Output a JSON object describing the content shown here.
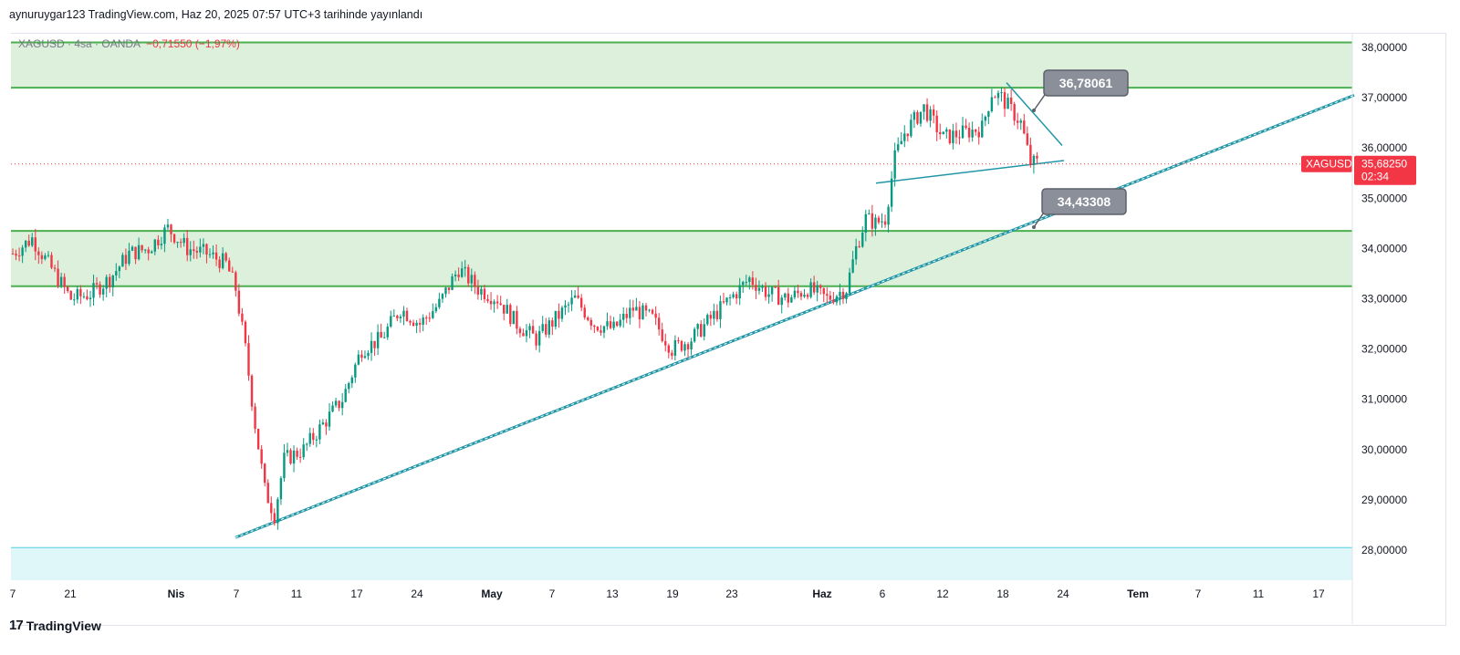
{
  "header": {
    "publish_line": "aynuruygar123 TradingView.com, Haz 20, 2025 07:57 UTC+3 tarihinde yayınlandı"
  },
  "legend": {
    "symbol": "XAGUSD",
    "interval": "4sa",
    "exchange": "OANDA",
    "change": "−0,71550",
    "change_pct": "(−1,97%)",
    "sep": " · "
  },
  "price_tag": {
    "symbol": "XAGUSD",
    "price": "35,68250",
    "countdown": "02:34"
  },
  "annotations": {
    "upper_label": "36,78061",
    "lower_label": "34,43308"
  },
  "brand": {
    "logo": "17",
    "name": "TradingView"
  },
  "colors": {
    "up": "#089981",
    "down": "#f23645",
    "zone_fill": "#dcf0dc",
    "zone_line": "#4caf50",
    "trend": "#2196a6",
    "bottom_zone": "#e0f7fa",
    "label_bg": "#8b8f99"
  },
  "chart_data": {
    "type": "candlestick",
    "title": "",
    "y_axis": {
      "side": "right",
      "ticks": [
        "38,00000",
        "37,00000",
        "36,00000",
        "35,00000",
        "34,00000",
        "33,00000",
        "32,00000",
        "31,00000",
        "30,00000",
        "29,00000",
        "28,00000"
      ],
      "range": [
        27.5,
        38.2
      ]
    },
    "x_axis": {
      "ticks": [
        "7",
        "21",
        "Nis",
        "7",
        "11",
        "17",
        "24",
        "May",
        "7",
        "13",
        "19",
        "23",
        "Haz",
        "6",
        "12",
        "18",
        "24",
        "Tem",
        "7",
        "11",
        "17"
      ]
    },
    "zones": [
      {
        "from": 37.2,
        "to": 38.1
      },
      {
        "from": 33.25,
        "to": 34.35
      }
    ],
    "bottom_zone": {
      "from": 27.5,
      "to": 28.05
    },
    "current_price": 35.6825,
    "price_path": [
      [
        0,
        33.9
      ],
      [
        2,
        34.2
      ],
      [
        4,
        33.6
      ],
      [
        6,
        33.0
      ],
      [
        8,
        33.1
      ],
      [
        10,
        33.4
      ],
      [
        12,
        33.9
      ],
      [
        14,
        34.0
      ],
      [
        16,
        34.4
      ],
      [
        18,
        34.0
      ],
      [
        20,
        33.9
      ],
      [
        22,
        33.7
      ],
      [
        23,
        33.2
      ],
      [
        24,
        32.0
      ],
      [
        25,
        30.5
      ],
      [
        26,
        29.2
      ],
      [
        27,
        28.7
      ],
      [
        28,
        29.8
      ],
      [
        30,
        30.0
      ],
      [
        32,
        30.5
      ],
      [
        34,
        31.0
      ],
      [
        36,
        32.0
      ],
      [
        38,
        32.2
      ],
      [
        40,
        32.8
      ],
      [
        42,
        32.5
      ],
      [
        44,
        32.9
      ],
      [
        46,
        33.6
      ],
      [
        48,
        33.2
      ],
      [
        50,
        33.0
      ],
      [
        52,
        32.5
      ],
      [
        54,
        32.2
      ],
      [
        56,
        32.6
      ],
      [
        58,
        33.0
      ],
      [
        60,
        32.5
      ],
      [
        62,
        32.4
      ],
      [
        64,
        32.8
      ],
      [
        66,
        32.6
      ],
      [
        68,
        32.0
      ],
      [
        70,
        32.2
      ],
      [
        72,
        32.6
      ],
      [
        74,
        33.0
      ],
      [
        76,
        33.4
      ],
      [
        78,
        33.1
      ],
      [
        80,
        33.0
      ],
      [
        82,
        33.2
      ],
      [
        84,
        33.0
      ],
      [
        86,
        33.2
      ],
      [
        87,
        34.0
      ],
      [
        88,
        34.6
      ],
      [
        89,
        34.5
      ],
      [
        90,
        34.6
      ],
      [
        91,
        35.8
      ],
      [
        92,
        36.3
      ],
      [
        94,
        36.8
      ],
      [
        96,
        36.2
      ],
      [
        98,
        36.3
      ],
      [
        100,
        36.4
      ],
      [
        101,
        37.1
      ],
      [
        102,
        37.0
      ],
      [
        104,
        36.5
      ],
      [
        105,
        35.7
      ]
    ],
    "trendlines": [
      {
        "name": "",
        "points": [
          [
            "Nis 7",
            28.25
          ],
          [
            "Tem ~1",
            37.05
          ]
        ]
      },
      {
        "name": "",
        "points": [
          [
            "Haz 5",
            35.3
          ],
          [
            "Haz 24",
            35.75
          ]
        ]
      },
      {
        "name": "",
        "points": [
          [
            "Haz 18",
            37.3
          ],
          [
            "Haz 24",
            36.05
          ]
        ]
      }
    ]
  }
}
